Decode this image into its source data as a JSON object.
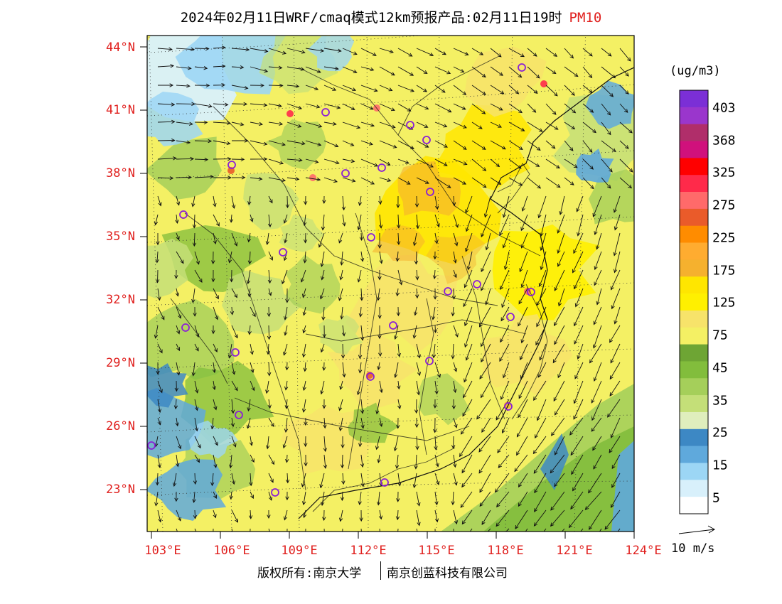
{
  "title": {
    "main": "2024年02月11日WRF/cmaq模式12km预报产品:02月11日19时",
    "pollutant": "PM10"
  },
  "axes": {
    "lat_labels": [
      "44°N",
      "41°N",
      "38°N",
      "35°N",
      "32°N",
      "29°N",
      "26°N",
      "23°N"
    ],
    "lon_labels": [
      "103°E",
      "106°E",
      "109°E",
      "112°E",
      "115°E",
      "118°E",
      "121°E",
      "124°E"
    ]
  },
  "colorbar": {
    "unit": "(ug/m3)",
    "labels": [
      "403",
      "368",
      "325",
      "275",
      "225",
      "175",
      "125",
      "75",
      "45",
      "35",
      "25",
      "15",
      "5"
    ],
    "colors": [
      "#7b2fd6",
      "#9a36cc",
      "#b02e6a",
      "#d0117c",
      "#ff0000",
      "#ff2a4a",
      "#ff6a6a",
      "#ea5b2a",
      "#ff8c00",
      "#ffac30",
      "#f5b12e",
      "#ffe600",
      "#fff000",
      "#f7e36a",
      "#f4f064",
      "#6ea534",
      "#82bd3c",
      "#a5cf5a",
      "#c4df78",
      "#dfeebd",
      "#3d88c4",
      "#5fa9dc",
      "#9cd6f5",
      "#d8f0fb",
      "#ffffff"
    ]
  },
  "vector_legend": {
    "label": "10 m/s"
  },
  "credit": {
    "left": "版权所有:南京大学",
    "right": "南京创蓝科技有限公司"
  }
}
